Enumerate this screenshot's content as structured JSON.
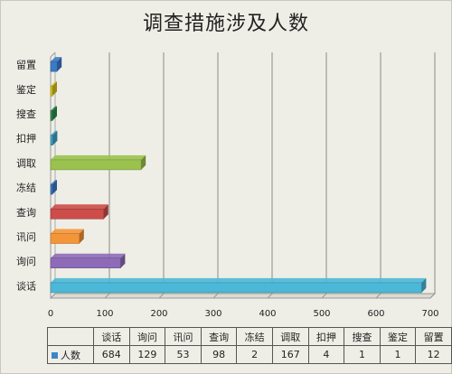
{
  "chart_data": {
    "type": "bar",
    "orientation": "horizontal",
    "title": "调查措施涉及人数",
    "categories": [
      "谈话",
      "询问",
      "讯问",
      "查询",
      "冻结",
      "调取",
      "扣押",
      "搜查",
      "鉴定",
      "留置"
    ],
    "series": [
      {
        "name": "人数",
        "values": [
          684,
          129,
          53,
          98,
          2,
          167,
          4,
          1,
          1,
          12
        ],
        "color": "#3a86c8"
      }
    ],
    "bar_colors": [
      "#4bb8d8",
      "#8e6bb8",
      "#f5953a",
      "#cc4d4a",
      "#3a7bc8",
      "#9bc24e",
      "#3fa3c4",
      "#2e8a4e",
      "#d6c41e",
      "#3a7bc8"
    ],
    "xlim": [
      0,
      700
    ],
    "xticks": [
      "0",
      "100",
      "200",
      "300",
      "400",
      "500",
      "600",
      "700"
    ],
    "grid": true,
    "legend": "data-table"
  }
}
